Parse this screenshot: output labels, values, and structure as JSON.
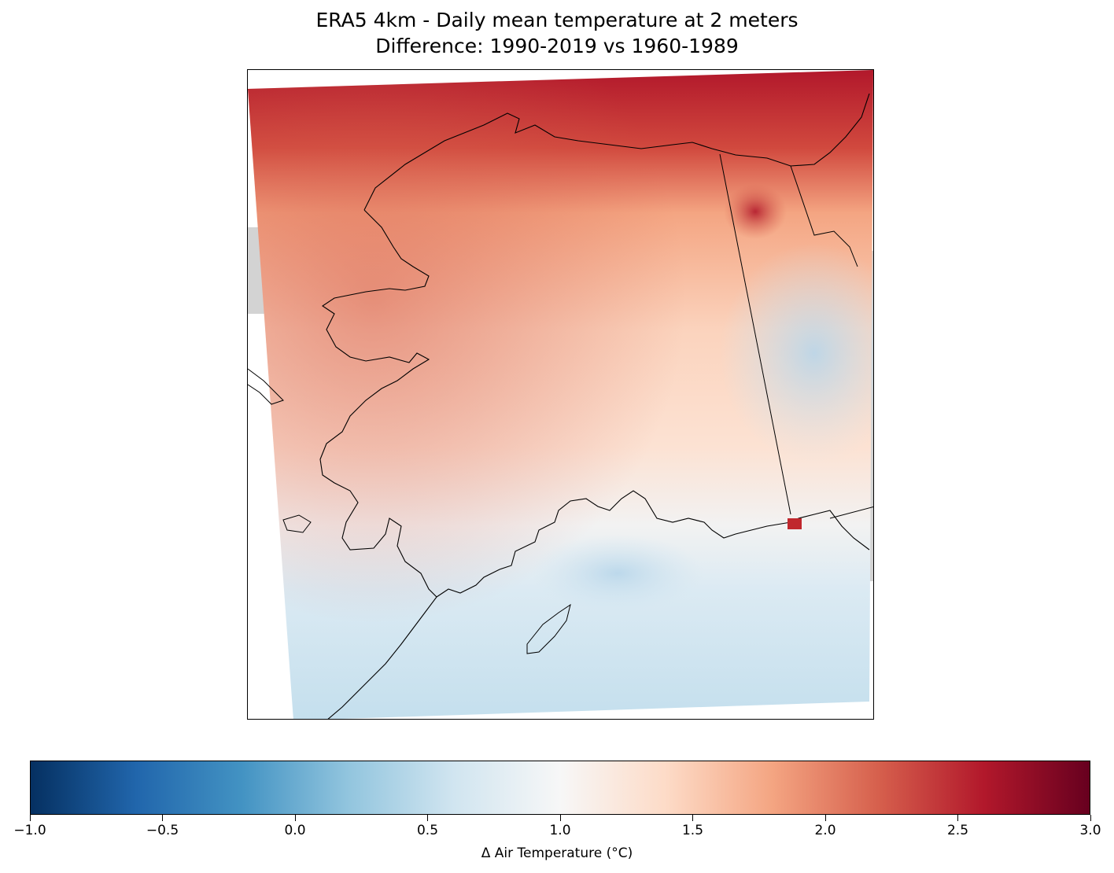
{
  "figure": {
    "title_line1": "ERA5 4km - Daily mean temperature at 2 meters",
    "title_line2": "Difference: 1990-2019 vs 1960-1989"
  },
  "map": {
    "region": "Alaska",
    "variable": "Daily mean temperature at 2 meters",
    "land_mask_color": "#d3d3d3",
    "coastline_color": "#000000"
  },
  "colorbar": {
    "label": "Δ Air Temperature (°C)",
    "colormap": "RdBu_r",
    "vmin": -1.0,
    "vmax": 3.0,
    "ticks": [
      {
        "value": -1.0,
        "label": "−1.0"
      },
      {
        "value": -0.5,
        "label": "−0.5"
      },
      {
        "value": 0.0,
        "label": "0.0"
      },
      {
        "value": 0.5,
        "label": "0.5"
      },
      {
        "value": 1.0,
        "label": "1.0"
      },
      {
        "value": 1.5,
        "label": "1.5"
      },
      {
        "value": 2.0,
        "label": "2.0"
      },
      {
        "value": 2.5,
        "label": "2.5"
      },
      {
        "value": 3.0,
        "label": "3.0"
      }
    ],
    "gradient_stops": [
      "#053061",
      "#2166ac",
      "#4393c3",
      "#92c5de",
      "#d1e5f0",
      "#f7f7f7",
      "#fddbc7",
      "#f4a582",
      "#d6604d",
      "#b2182b",
      "#67001f"
    ]
  }
}
